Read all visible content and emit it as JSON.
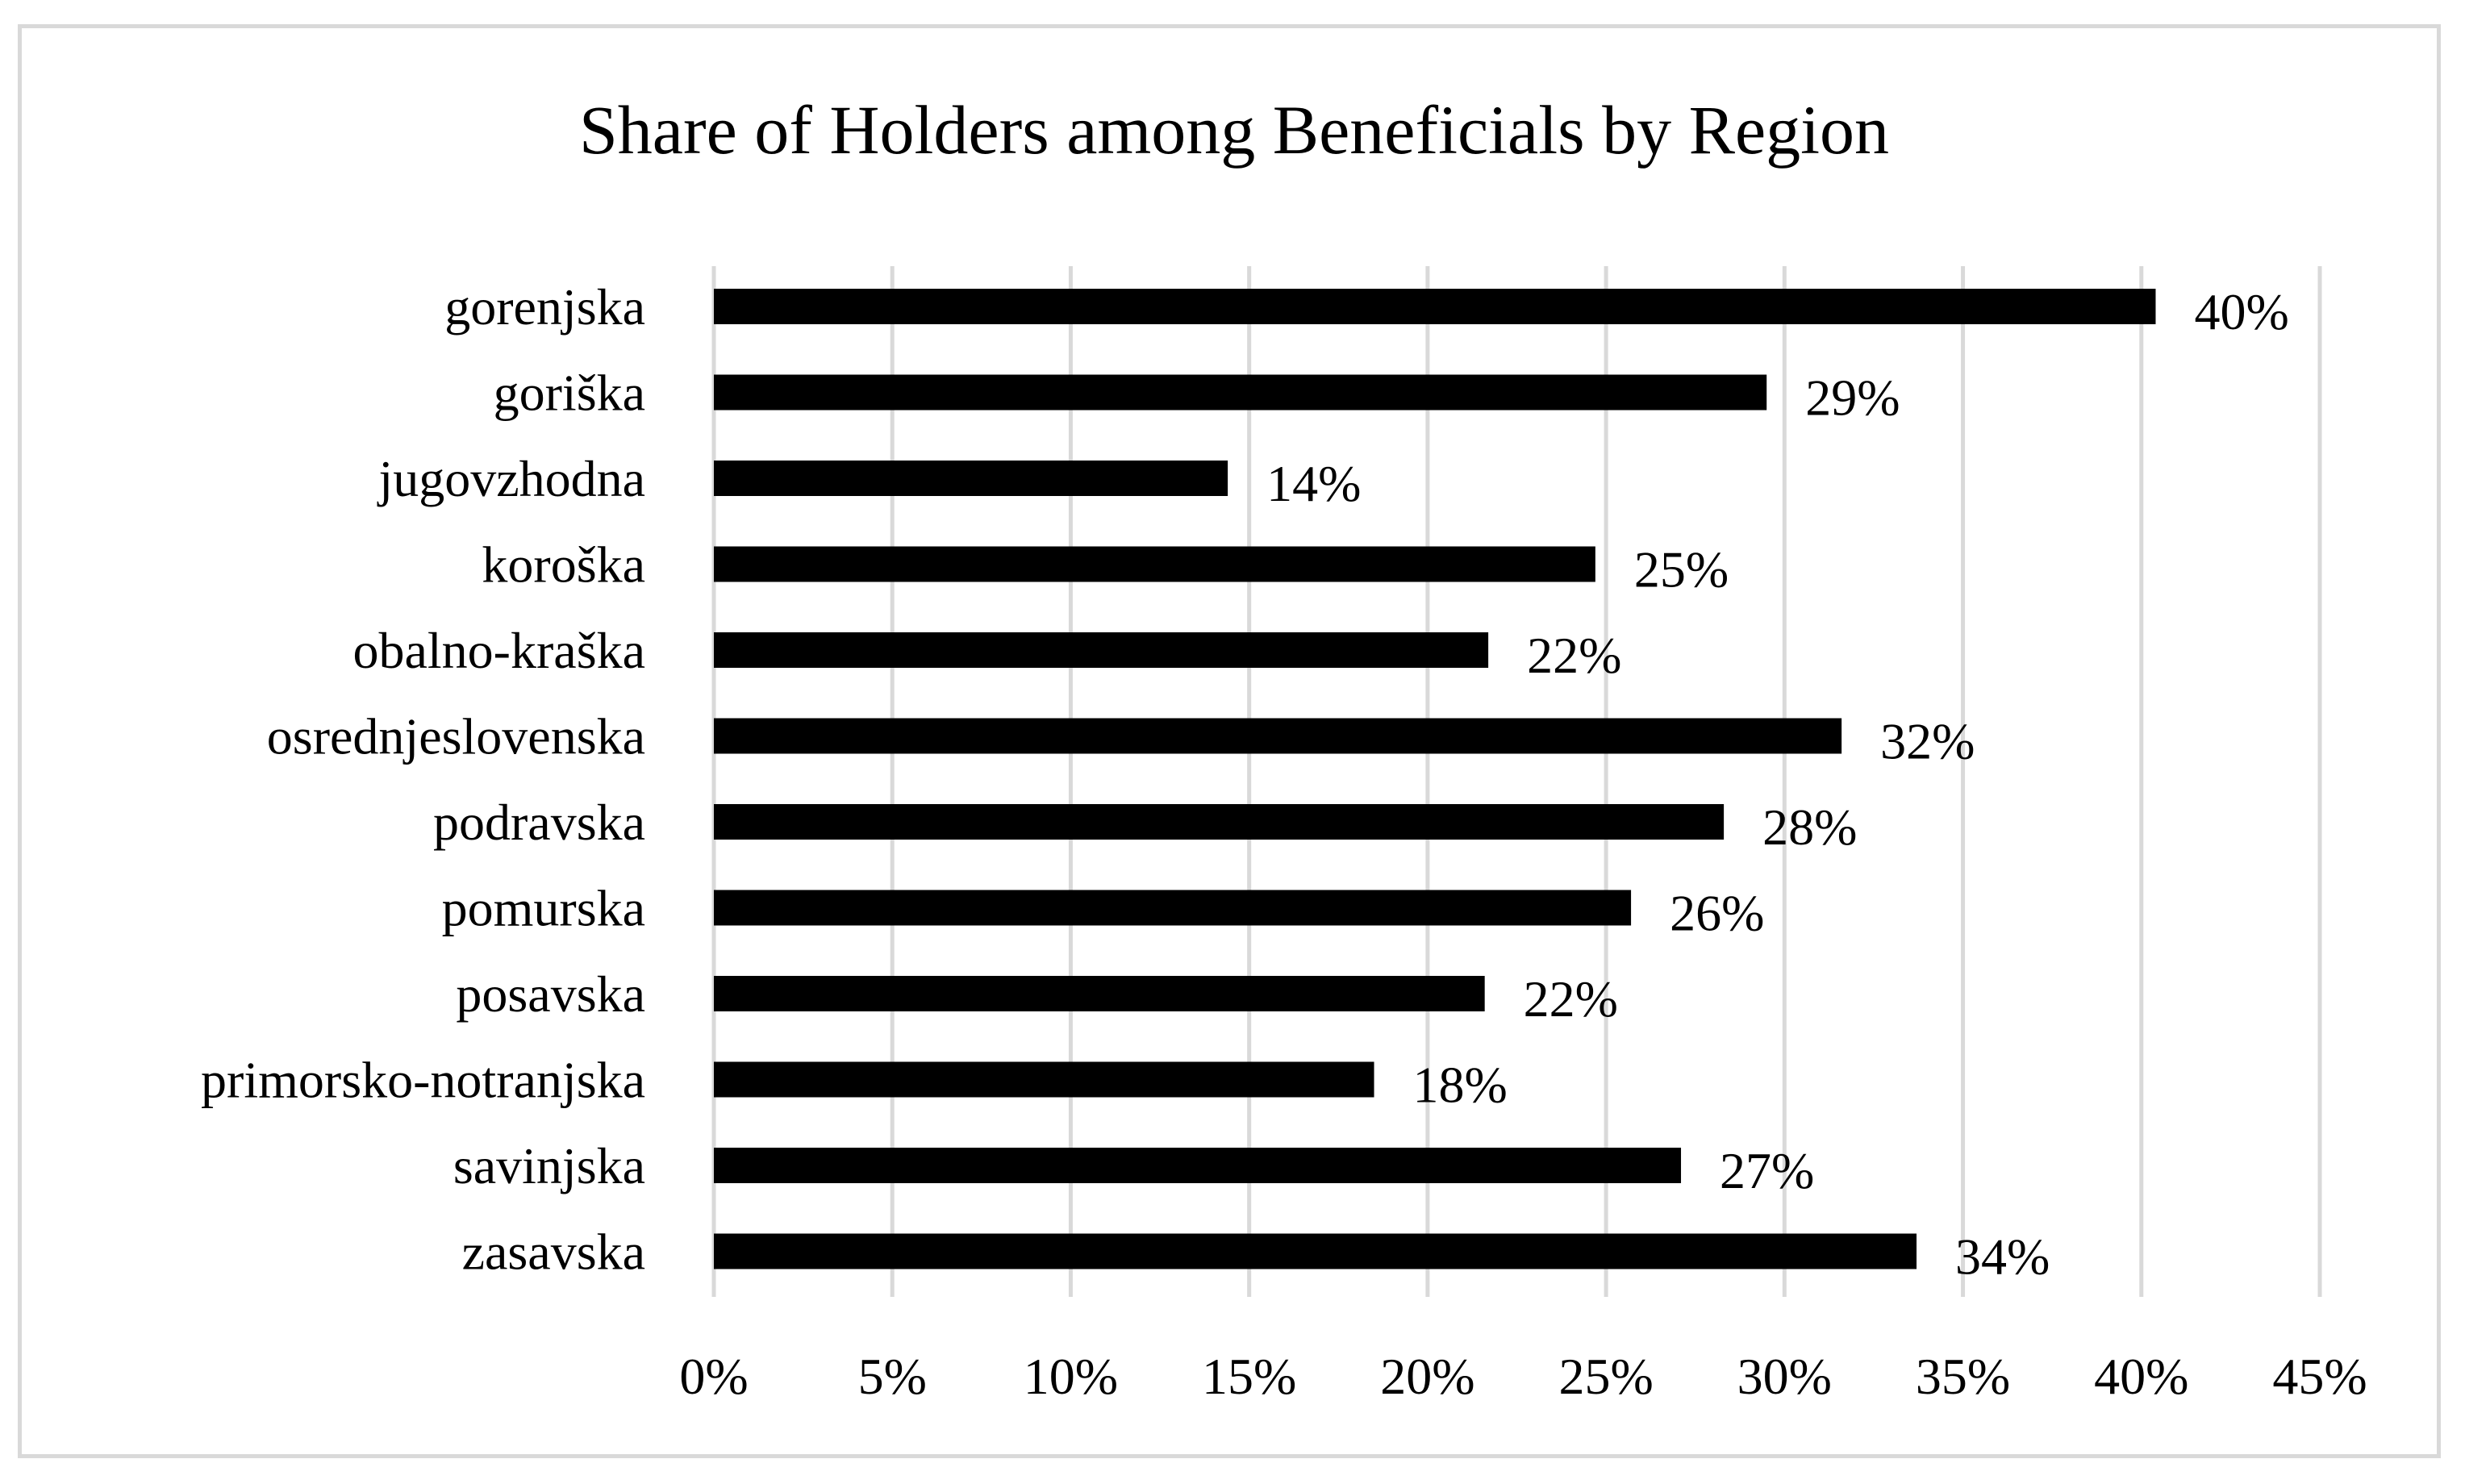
{
  "chart_data": {
    "type": "bar",
    "orientation": "horizontal",
    "title": "Share of Holders among Beneficials by Region",
    "xlabel": "",
    "ylabel": "",
    "categories": [
      "gorenjska",
      "goriška",
      "jugovzhodna",
      "koroška",
      "obalno-kraška",
      "osrednjeslovenska",
      "podravska",
      "pomurska",
      "posavska",
      "primorsko-notranjska",
      "savinjska",
      "zasavska"
    ],
    "values": [
      40.4,
      29.5,
      14.4,
      24.7,
      21.7,
      31.6,
      28.3,
      25.7,
      21.6,
      18.5,
      27.1,
      33.7
    ],
    "data_labels": [
      "40%",
      "29%",
      "14%",
      "25%",
      "22%",
      "32%",
      "28%",
      "26%",
      "22%",
      "18%",
      "27%",
      "34%"
    ],
    "xlim": [
      0,
      45
    ],
    "x_ticks": [
      0,
      5,
      10,
      15,
      20,
      25,
      30,
      35,
      40,
      45
    ],
    "x_tick_labels": [
      "0%",
      "5%",
      "10%",
      "15%",
      "20%",
      "25%",
      "30%",
      "35%",
      "40%",
      "45%"
    ],
    "grid": "vertical",
    "legend": "none",
    "colors": {
      "bar": "#000000",
      "grid": "#d9d9d9",
      "border": "#d9d9d9",
      "text": "#000000"
    }
  }
}
